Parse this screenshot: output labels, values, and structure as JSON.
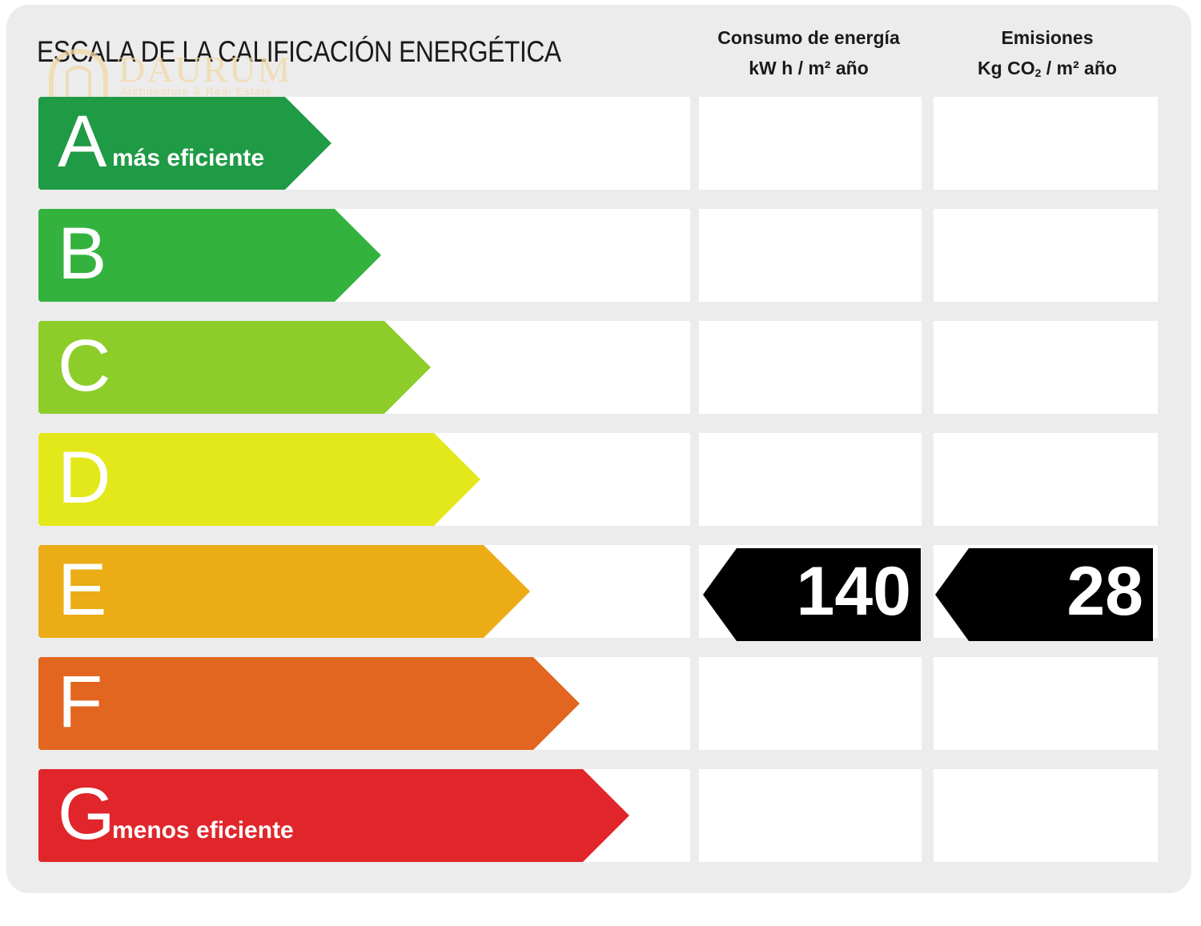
{
  "header": {
    "title": "ESCALA DE LA CALIFICACIÓN ENERGÉTICA",
    "consumption": {
      "line1": "Consumo de energía",
      "line2": "kW h / m² año"
    },
    "emissions": {
      "line1": "Emisiones",
      "line2_pre": "Kg CO",
      "line2_sub": "2",
      "line2_post": " / m² año"
    }
  },
  "logo": {
    "name": "DAURUM",
    "tagline": "Architecture & Real Estate"
  },
  "ratings": [
    {
      "letter": "A",
      "label": "más eficiente",
      "color": "#1f9a45"
    },
    {
      "letter": "B",
      "label": "",
      "color": "#33b23e"
    },
    {
      "letter": "C",
      "label": "",
      "color": "#8ccd2a"
    },
    {
      "letter": "D",
      "label": "",
      "color": "#e3e81a"
    },
    {
      "letter": "E",
      "label": "",
      "color": "#ecac16"
    },
    {
      "letter": "F",
      "label": "",
      "color": "#e2661f"
    },
    {
      "letter": "G",
      "label": "menos eficiente",
      "color": "#e1262b"
    }
  ],
  "result": {
    "rating": "E",
    "consumption_value": "140",
    "emissions_value": "28"
  }
}
